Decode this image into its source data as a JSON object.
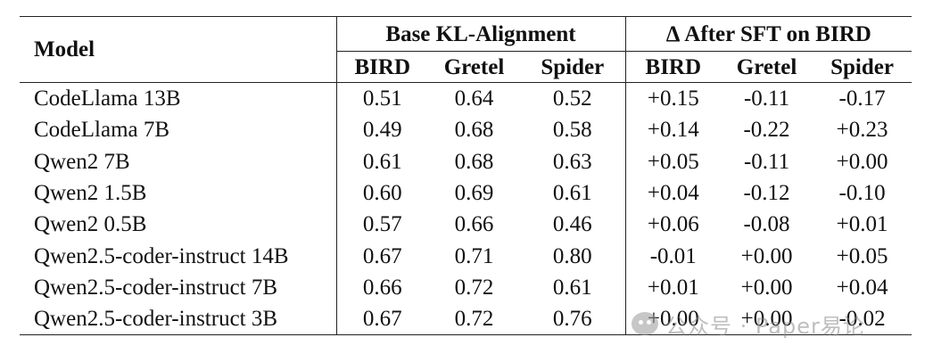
{
  "table": {
    "model_header": "Model",
    "group_headers": [
      "Base KL-Alignment",
      "Δ After SFT on BIRD"
    ],
    "sub_headers": [
      "BIRD",
      "Gretel",
      "Spider",
      "BIRD",
      "Gretel",
      "Spider"
    ],
    "rows": [
      {
        "model": "CodeLlama 13B",
        "cells": [
          "0.51",
          "0.64",
          "0.52",
          "+0.15",
          "-0.11",
          "-0.17"
        ]
      },
      {
        "model": "CodeLlama 7B",
        "cells": [
          "0.49",
          "0.68",
          "0.58",
          "+0.14",
          "-0.22",
          "+0.23"
        ]
      },
      {
        "model": "Qwen2 7B",
        "cells": [
          "0.61",
          "0.68",
          "0.63",
          "+0.05",
          "-0.11",
          "+0.00"
        ]
      },
      {
        "model": "Qwen2 1.5B",
        "cells": [
          "0.60",
          "0.69",
          "0.61",
          "+0.04",
          "-0.12",
          "-0.10"
        ]
      },
      {
        "model": "Qwen2 0.5B",
        "cells": [
          "0.57",
          "0.66",
          "0.46",
          "+0.06",
          "-0.08",
          "+0.01"
        ]
      },
      {
        "model": "Qwen2.5-coder-instruct 14B",
        "cells": [
          "0.67",
          "0.71",
          "0.80",
          "-0.01",
          "+0.00",
          "+0.05"
        ]
      },
      {
        "model": "Qwen2.5-coder-instruct 7B",
        "cells": [
          "0.66",
          "0.72",
          "0.61",
          "+0.01",
          "+0.00",
          "+0.04"
        ]
      },
      {
        "model": "Qwen2.5-coder-instruct 3B",
        "cells": [
          "0.67",
          "0.72",
          "0.76",
          "+0.00",
          "+0.00",
          "-0.02"
        ]
      }
    ]
  },
  "watermark": {
    "icon": "wechat-logo-icon",
    "text": "公众号 · Paper易论"
  }
}
